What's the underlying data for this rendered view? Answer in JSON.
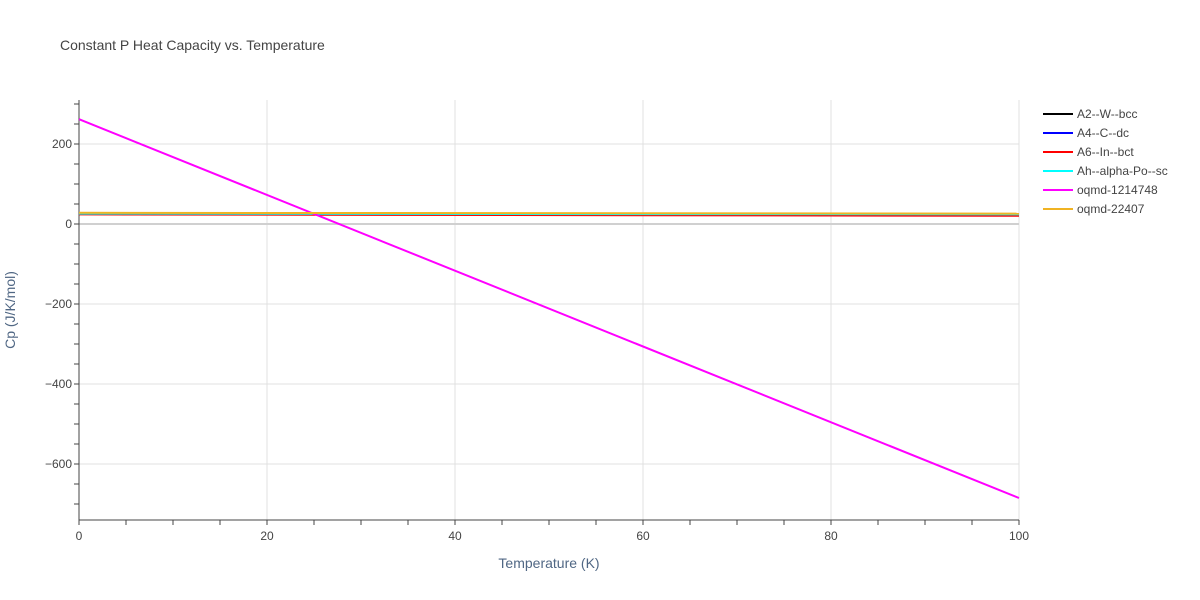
{
  "chart_data": {
    "type": "line",
    "title": "Constant P Heat Capacity vs. Temperature",
    "xlabel": "Temperature (K)",
    "ylabel": "Cp (J/K/mol)",
    "xlim": [
      0,
      100
    ],
    "ylim": [
      -740,
      310
    ],
    "x_ticks": [
      0,
      20,
      40,
      60,
      80,
      100
    ],
    "y_ticks": [
      -600,
      -400,
      -200,
      0,
      200
    ],
    "y_tick_labels": [
      "−600",
      "−400",
      "−200",
      "0",
      "200"
    ],
    "grid": true,
    "legend_position": "right",
    "series": [
      {
        "name": "A2--W--bcc",
        "color": "#000000",
        "x": [
          0,
          100
        ],
        "y": [
          25.5,
          23.0
        ]
      },
      {
        "name": "A4--C--dc",
        "color": "#0000ff",
        "x": [
          0,
          100
        ],
        "y": [
          25.0,
          22.5
        ]
      },
      {
        "name": "A6--In--bct",
        "color": "#ff0000",
        "x": [
          0,
          100
        ],
        "y": [
          24.0,
          20.5
        ]
      },
      {
        "name": "Ah--alpha-Po--sc",
        "color": "#00ffff",
        "x": [
          0,
          100
        ],
        "y": [
          26.0,
          24.0
        ]
      },
      {
        "name": "oqmd-1214748",
        "color": "#ff00ff",
        "x": [
          0,
          100
        ],
        "y": [
          262,
          -685
        ]
      },
      {
        "name": "oqmd-22407",
        "color": "#f0b323",
        "x": [
          0,
          100
        ],
        "y": [
          28.0,
          26.0
        ]
      }
    ]
  }
}
